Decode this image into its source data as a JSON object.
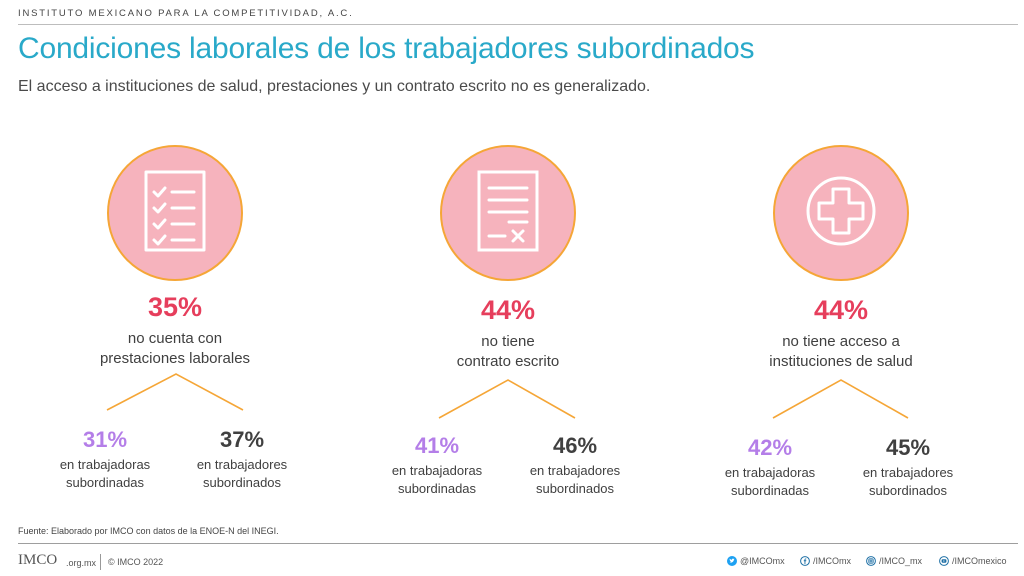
{
  "header": {
    "organization": "INSTITUTO MEXICANO PARA LA COMPETITIVIDAD, A.C.",
    "title": "Condiciones laborales de los trabajadores subordinados",
    "subtitle": "El acceso a instituciones de salud, prestaciones y un contrato escrito no es generalizado."
  },
  "stats": [
    {
      "icon": "checklist-icon",
      "pct": "35%",
      "desc1": "no cuenta con",
      "desc2": "prestaciones laborales",
      "left_pct": "31%",
      "left_lbl1": "en trabajadoras",
      "left_lbl2": "subordinadas",
      "right_pct": "37%",
      "right_lbl1": "en trabajadores",
      "right_lbl2": "subordinados"
    },
    {
      "icon": "contract-icon",
      "pct": "44%",
      "desc1": "no tiene",
      "desc2": "contrato escrito",
      "left_pct": "41%",
      "left_lbl1": "en trabajadoras",
      "left_lbl2": "subordinadas",
      "right_pct": "46%",
      "right_lbl1": "en trabajadores",
      "right_lbl2": "subordinados"
    },
    {
      "icon": "health-cross-icon",
      "pct": "44%",
      "desc1": "no tiene acceso a",
      "desc2": "instituciones de salud",
      "left_pct": "42%",
      "left_lbl1": "en trabajadoras",
      "left_lbl2": "subordinadas",
      "right_pct": "45%",
      "right_lbl1": "en trabajadores",
      "right_lbl2": "subordinados"
    }
  ],
  "colors": {
    "title": "#29a9c9",
    "circle_fill": "#f6b3bd",
    "circle_border": "#f5a637",
    "main_pct": "#e63e5c",
    "women_pct": "#b47ee8",
    "men_pct": "#404040",
    "connector": "#f5a637"
  },
  "footer": {
    "source": "Fuente: Elaborado por IMCO con datos de la ENOE-N del INEGI.",
    "logo": "IMCO",
    "logo_domain": ".org.mx",
    "copyright": "© IMCO 2022",
    "twitter": "@IMCOmx",
    "facebook": "/IMCOmx",
    "instagram": "/IMCO_mx",
    "youtube": "/IMCOmexico"
  }
}
